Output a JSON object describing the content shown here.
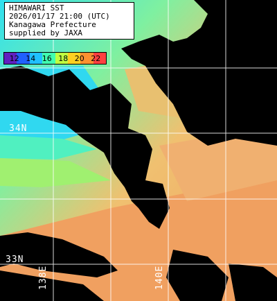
{
  "header": {
    "line1": "HIMAWARI SST",
    "line2": "2026/01/17 21:00 (UTC)",
    "line3": "Kanagawa Prefecture",
    "line4": "supplied by JAXA"
  },
  "legend": {
    "labels": [
      "12",
      "14",
      "16",
      "18",
      "20",
      "22"
    ],
    "colors": [
      "#6020c0",
      "#2060ff",
      "#20c0ff",
      "#40ffb0",
      "#c0ff40",
      "#ffd020",
      "#ff9030",
      "#ff4040"
    ]
  },
  "grid_labels": {
    "lat_34": "34N",
    "lat_33": "33N",
    "lon_138": "138E",
    "lon_140": "140E"
  },
  "colors": {
    "land": "#000000",
    "grid": "#ffffff",
    "cyan": "#30e0f0",
    "green": "#60f0a0",
    "yellow": "#e8e070",
    "orange": "#f0a060"
  }
}
